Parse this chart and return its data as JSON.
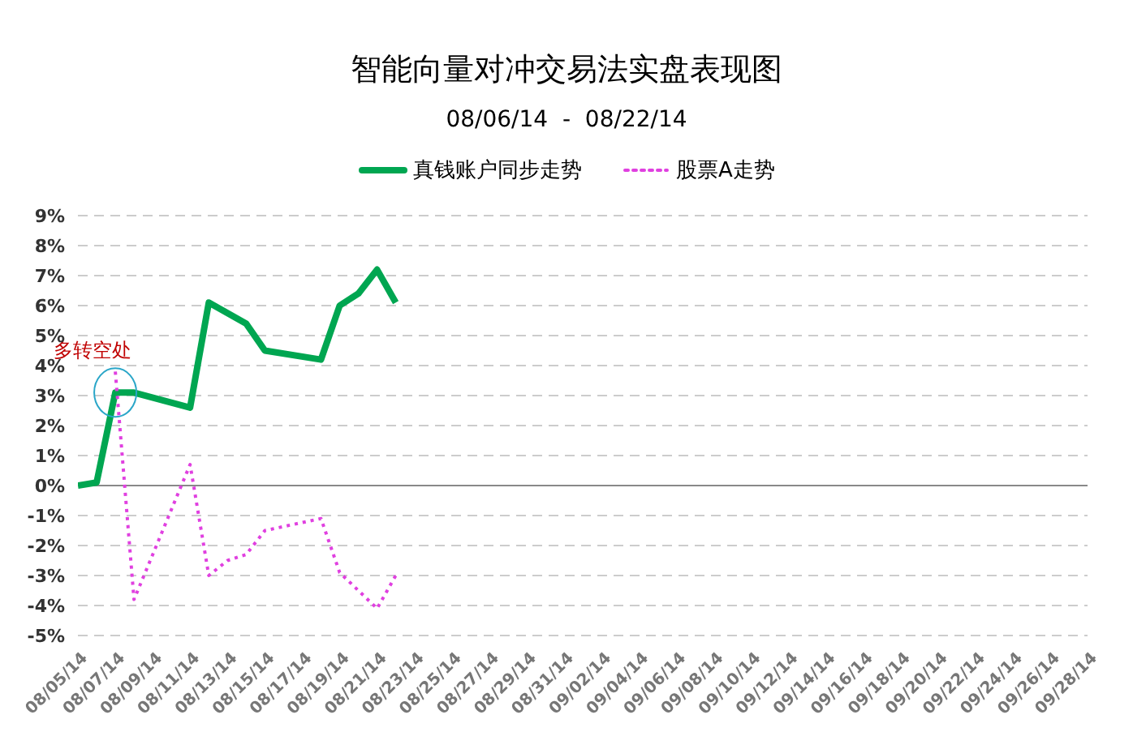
{
  "chart_data": {
    "type": "line",
    "title": "智能向量对冲交易法实盘表现图",
    "subtitle": "08/06/14  -  08/22/14",
    "series": [
      {
        "name": "真钱账户同步走势",
        "color": "#00a651",
        "line_style": "solid",
        "x": [
          "--08-05",
          "--08-06",
          "--08-07",
          "--08-08",
          "--08-11",
          "--08-12",
          "--08-14",
          "--08-15",
          "--08-18",
          "--08-19",
          "--08-20",
          "--08-21",
          "--08-22"
        ],
        "values": [
          0,
          0.1,
          3.1,
          3.1,
          2.6,
          6.1,
          5.4,
          4.5,
          4.2,
          6.0,
          6.4,
          7.2,
          6.1
        ]
      },
      {
        "name": "股票A走势",
        "color": "#e040e0",
        "line_style": "dotted",
        "x": [
          "--08-07",
          "--08-08",
          "--08-11",
          "--08-12",
          "--08-13",
          "--08-14",
          "--08-15",
          "--08-18",
          "--08-19",
          "--08-21",
          "--08-22"
        ],
        "values": [
          3.8,
          -3.8,
          0.7,
          -3.0,
          -2.5,
          -2.3,
          -1.5,
          -1.1,
          -2.9,
          -4.1,
          -3.0
        ]
      }
    ],
    "annotations": [
      {
        "text": "多转空处",
        "x": "--08-07",
        "y": 3.1
      }
    ],
    "xlim": [
      "--08-05",
      "--09-28"
    ],
    "xticks": [
      {
        "value": "--08-05",
        "label": "08/05/14"
      },
      {
        "value": "--08-07",
        "label": "08/07/14"
      },
      {
        "value": "--08-09",
        "label": "08/09/14"
      },
      {
        "value": "--08-11",
        "label": "08/11/14"
      },
      {
        "value": "--08-13",
        "label": "08/13/14"
      },
      {
        "value": "--08-15",
        "label": "08/15/14"
      },
      {
        "value": "--08-17",
        "label": "08/17/14"
      },
      {
        "value": "--08-19",
        "label": "08/19/14"
      },
      {
        "value": "--08-21",
        "label": "08/21/14"
      },
      {
        "value": "--08-23",
        "label": "08/23/14"
      },
      {
        "value": "--08-25",
        "label": "08/25/14"
      },
      {
        "value": "--08-27",
        "label": "08/27/14"
      },
      {
        "value": "--08-29",
        "label": "08/29/14"
      },
      {
        "value": "--08-31",
        "label": "08/31/14"
      },
      {
        "value": "--09-02",
        "label": "09/02/14"
      },
      {
        "value": "--09-04",
        "label": "09/04/14"
      },
      {
        "value": "--09-06",
        "label": "09/06/14"
      },
      {
        "value": "--09-08",
        "label": "09/08/14"
      },
      {
        "value": "--09-10",
        "label": "09/10/14"
      },
      {
        "value": "--09-12",
        "label": "09/12/14"
      },
      {
        "value": "--09-14",
        "label": "09/14/14"
      },
      {
        "value": "--09-16",
        "label": "09/16/14"
      },
      {
        "value": "--09-18",
        "label": "09/18/14"
      },
      {
        "value": "--09-20",
        "label": "09/20/14"
      },
      {
        "value": "--09-22",
        "label": "09/22/14"
      },
      {
        "value": "--09-24",
        "label": "09/24/14"
      },
      {
        "value": "--09-26",
        "label": "09/26/14"
      },
      {
        "value": "--09-28",
        "label": "09/28/14"
      }
    ],
    "ylim": [
      -5,
      9
    ],
    "yticks": [
      {
        "value": -5,
        "label": "-5%"
      },
      {
        "value": -4,
        "label": "-4%"
      },
      {
        "value": -3,
        "label": "-3%"
      },
      {
        "value": -2,
        "label": "-2%"
      },
      {
        "value": -1,
        "label": "-1%"
      },
      {
        "value": 0,
        "label": "0%"
      },
      {
        "value": 1,
        "label": "1%"
      },
      {
        "value": 2,
        "label": "2%"
      },
      {
        "value": 3,
        "label": "3%"
      },
      {
        "value": 4,
        "label": "4%"
      },
      {
        "value": 5,
        "label": "5%"
      },
      {
        "value": 6,
        "label": "6%"
      },
      {
        "value": 7,
        "label": "7%"
      },
      {
        "value": 8,
        "label": "8%"
      },
      {
        "value": 9,
        "label": "9%"
      }
    ],
    "grid": "y",
    "legend": "top",
    "marker": "none"
  }
}
